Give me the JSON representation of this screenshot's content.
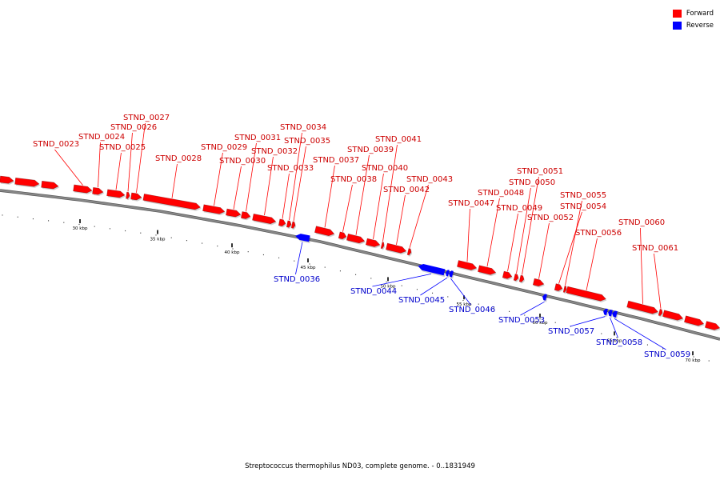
{
  "legend": [
    {
      "label": "Forward",
      "color": "#ff0000"
    },
    {
      "label": "Reverse",
      "color": "#0000ff"
    }
  ],
  "footer": "Streptococcus thermophilus ND03, complete genome. - 0..1831949",
  "colors": {
    "forward": "#ff0000",
    "reverse": "#0000ff",
    "forward_label": "#cc0000",
    "reverse_label": "#0000cc",
    "backbone": "#888888"
  },
  "tick_labels": [
    "30 kbp",
    "35 kbp",
    "40 kbp",
    "45 kbp",
    "50 kbp",
    "55 kbp",
    "60 kbp",
    "65 kbp",
    "70 kbp"
  ],
  "forward_genes": [
    "STND_0023",
    "STND_0024",
    "STND_0025",
    "STND_0026",
    "STND_0027",
    "STND_0028",
    "STND_0029",
    "STND_0030",
    "STND_0031",
    "STND_0032",
    "STND_0033",
    "STND_0034",
    "STND_0035",
    "STND_0037",
    "STND_0038",
    "STND_0039",
    "STND_0040",
    "STND_0041",
    "STND_0042",
    "STND_0043",
    "STND_0047",
    "STND_0048",
    "STND_0049",
    "STND_0050",
    "STND_0051",
    "STND_0052",
    "STND_0054",
    "STND_0055",
    "STND_0056",
    "STND_0060",
    "STND_0061"
  ],
  "reverse_genes": [
    "STND_0036",
    "STND_0044",
    "STND_0045",
    "STND_0046",
    "STND_0053",
    "STND_0057",
    "STND_0058",
    "STND_0059"
  ]
}
